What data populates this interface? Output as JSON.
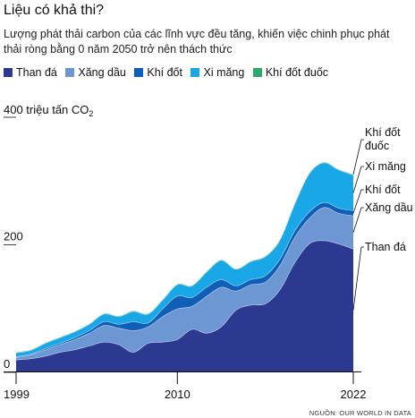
{
  "title": "Liệu có khả thi?",
  "subtitle": "Lượng phát thải carbon của các lĩnh vực đều tăng, khiến việc chinh phục phát thải ròng bằng 0 năm 2050 trở nên thách thức",
  "source": "NGUỒN: OUR WORLD IN DATA",
  "colors": {
    "than_da": "#2b3990",
    "xang_dau": "#6d97d3",
    "khi_dot": "#0f5fb8",
    "xi_mang": "#1aa7e8",
    "khi_dot_duoc": "#2ea86a"
  },
  "chart_data": {
    "type": "area",
    "stacked": true,
    "title": "Liệu có khả thi?",
    "ylabel": "400 triệu tấn CO₂",
    "ylabel_main": "400 triệu tấn CO",
    "ylabel_sub": "2",
    "ylim": [
      0,
      400
    ],
    "yticks": [
      "0",
      "200"
    ],
    "xlim": [
      1999,
      2022
    ],
    "xticks": [
      "1999",
      "2010",
      "2022"
    ],
    "x": [
      1999,
      2000,
      2001,
      2002,
      2003,
      2004,
      2005,
      2006,
      2007,
      2008,
      2009,
      2010,
      2011,
      2012,
      2013,
      2014,
      2015,
      2016,
      2017,
      2018,
      2019,
      2020,
      2021,
      2022
    ],
    "series": [
      {
        "name": "Than đá",
        "color": "#2b3990",
        "values": [
          18,
          20,
          24,
          30,
          34,
          40,
          46,
          42,
          30,
          44,
          46,
          50,
          66,
          60,
          70,
          96,
          104,
          106,
          128,
          170,
          200,
          205,
          200,
          192
        ]
      },
      {
        "name": "Xăng dầu",
        "color": "#6d97d3",
        "values": [
          4,
          6,
          10,
          12,
          16,
          20,
          26,
          26,
          34,
          26,
          40,
          48,
          36,
          58,
          62,
          30,
          32,
          34,
          38,
          40,
          40,
          52,
          48,
          52
        ]
      },
      {
        "name": "Khí đốt",
        "color": "#0f5fb8",
        "values": [
          1,
          1,
          2,
          2,
          3,
          4,
          6,
          6,
          14,
          6,
          12,
          20,
          14,
          14,
          12,
          8,
          8,
          10,
          10,
          10,
          10,
          8,
          8,
          8
        ]
      },
      {
        "name": "Xi măng",
        "color": "#1aa7e8",
        "values": [
          6,
          6,
          8,
          9,
          9,
          10,
          12,
          12,
          16,
          14,
          14,
          18,
          18,
          24,
          30,
          26,
          28,
          30,
          30,
          42,
          60,
          62,
          60,
          56
        ]
      },
      {
        "name": "Khí đốt đuốc",
        "color": "#2ea86a",
        "values": [
          1,
          1,
          1,
          1,
          1,
          1,
          1,
          1,
          1,
          1,
          1,
          1,
          1,
          1,
          1,
          1,
          1,
          1,
          1,
          1,
          1,
          1,
          1,
          1
        ]
      }
    ],
    "legend": [
      "Than đá",
      "Xăng dầu",
      "Khí đốt",
      "Xi măng",
      "Khí đốt đuốc"
    ],
    "series_labels": [
      "Than đá",
      "Xăng dầu",
      "Khí đốt",
      "Xi măng",
      "Khí đốt\nđuốc"
    ],
    "legend_position": "top",
    "grid": false
  }
}
